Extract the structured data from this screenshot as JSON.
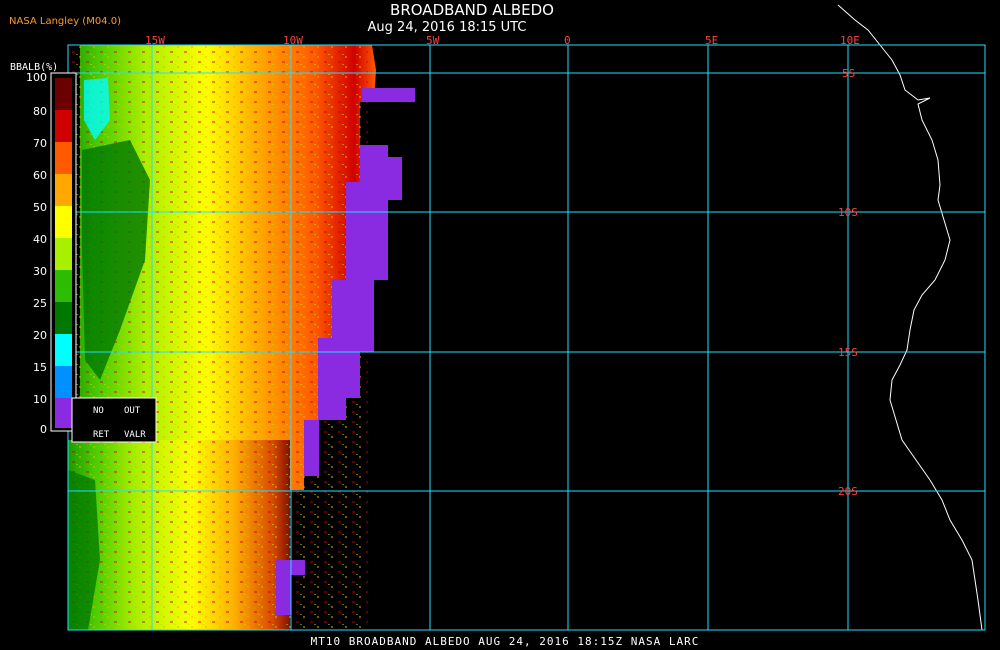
{
  "header": {
    "title": "BROADBAND ALBEDO",
    "subtitle": "Aug 24, 2016 18:15 UTC",
    "producer": "NASA Langley (M04.0)"
  },
  "legend": {
    "title": "BBALB(%)",
    "labels": [
      "100",
      "80",
      "70",
      "60",
      "50",
      "40",
      "30",
      "25",
      "20",
      "15",
      "10",
      "0"
    ],
    "colors": [
      "#6a0000",
      "#d00000",
      "#ff5a00",
      "#ffa800",
      "#ffff00",
      "#a8f000",
      "#2cbc00",
      "#007800",
      "#00ffff",
      "#0090ff",
      "#0000ff",
      "#8a2be2"
    ],
    "notes": [
      {
        "label": "NO",
        "meaning_label": "OUT"
      },
      {
        "label": "RET",
        "meaning_label": "VALR"
      }
    ]
  },
  "axes": {
    "longitude_labels": [
      "15W",
      "10W",
      "5W",
      "0",
      "5E",
      "10E"
    ],
    "latitude_labels": [
      "5S",
      "10S",
      "15S",
      "20S"
    ],
    "grid_color": "#20e0ff"
  },
  "footer": {
    "text": "MT10  BROADBAND ALBEDO   AUG 24, 2016 18:15Z   NASA LARC"
  }
}
